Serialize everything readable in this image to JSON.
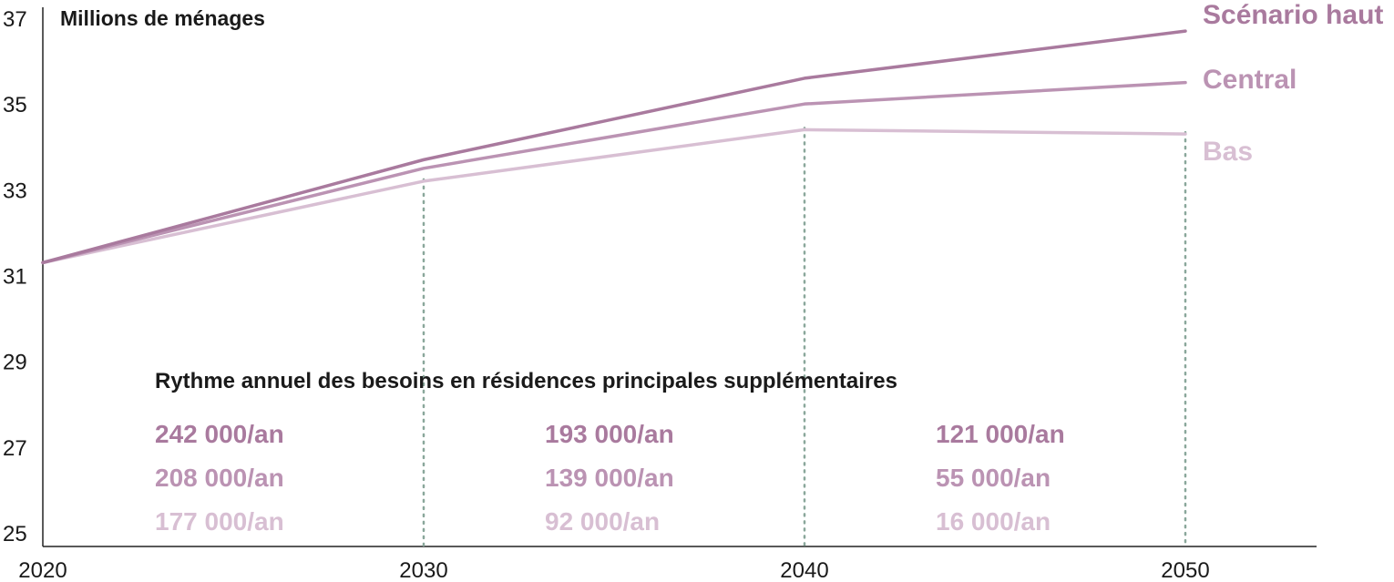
{
  "chart_data": {
    "type": "line",
    "ylabel": "Millions de ménages",
    "x": [
      2020,
      2030,
      2040,
      2050
    ],
    "x_ticks": [
      "2020",
      "2030",
      "2040",
      "2050"
    ],
    "y_ticks": [
      "37",
      "35",
      "33",
      "31",
      "29",
      "27",
      "25"
    ],
    "ylim": [
      25,
      37
    ],
    "grid": false,
    "series": [
      {
        "name": "Scénario haut",
        "color": "#a97a9e",
        "values": [
          31.3,
          33.7,
          35.6,
          36.7
        ]
      },
      {
        "name": "Central",
        "color": "#bb93b3",
        "values": [
          31.3,
          33.5,
          35.0,
          35.5
        ]
      },
      {
        "name": "Bas",
        "color": "#d8bfd3",
        "values": [
          31.3,
          33.2,
          34.4,
          34.3
        ]
      }
    ],
    "annual_rates": {
      "title": "Rythme annuel des besoins en résidences principales supplémentaires",
      "periods": [
        {
          "rates": [
            "242 000/an",
            "208 000/an",
            "177 000/an"
          ]
        },
        {
          "rates": [
            "193 000/an",
            "139 000/an",
            "92 000/an"
          ]
        },
        {
          "rates": [
            "121 000/an",
            "55 000/an",
            "16 000/an"
          ]
        }
      ]
    }
  }
}
